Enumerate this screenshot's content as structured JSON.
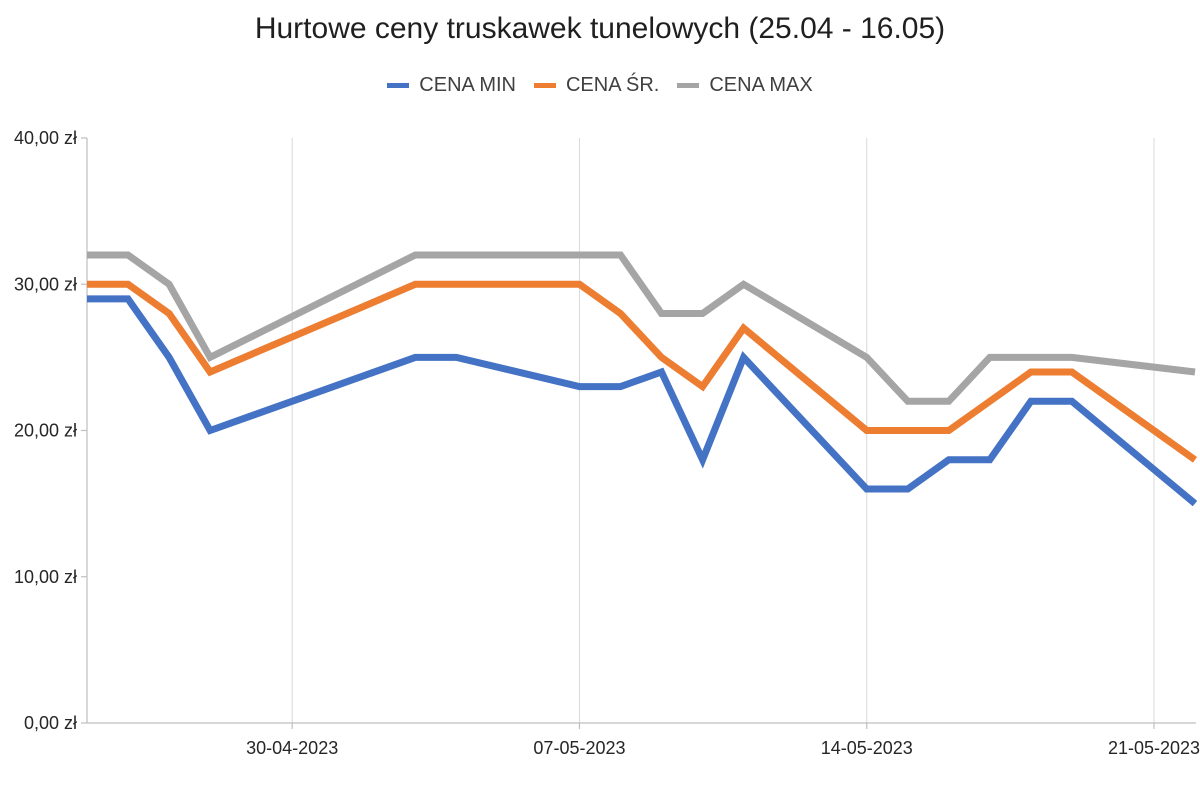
{
  "chart_data": {
    "type": "line",
    "title": "Hurtowe ceny truskawek tunelowych (25.04 - 16.05)",
    "xlabel": "",
    "ylabel": "",
    "ylim": [
      0,
      40
    ],
    "yticks": [
      {
        "value": 0,
        "label": "0,00 zł"
      },
      {
        "value": 10,
        "label": "10,00 zł"
      },
      {
        "value": 20,
        "label": "20,00 zł"
      },
      {
        "value": 30,
        "label": "30,00 zł"
      },
      {
        "value": 40,
        "label": "40,00 zł"
      }
    ],
    "xlim": [
      "2023-04-25",
      "2023-05-21"
    ],
    "xticks": [
      {
        "date": "2023-04-30",
        "label": "30-04-2023"
      },
      {
        "date": "2023-05-07",
        "label": "07-05-2023"
      },
      {
        "date": "2023-05-14",
        "label": "14-05-2023"
      },
      {
        "date": "2023-05-21",
        "label": "21-05-2023"
      }
    ],
    "grid": "vertical",
    "legend_position": "top",
    "x": [
      "2023-04-25",
      "2023-04-26",
      "2023-04-27",
      "2023-04-28",
      "2023-05-03",
      "2023-05-04",
      "2023-05-06",
      "2023-05-07",
      "2023-05-08",
      "2023-05-09",
      "2023-05-10",
      "2023-05-11",
      "2023-05-12",
      "2023-05-13",
      "2023-05-14",
      "2023-05-15",
      "2023-05-16",
      "2023-05-17",
      "2023-05-18",
      "2023-05-19",
      "2023-05-20",
      "2023-05-21",
      "2023-05-22"
    ],
    "series": [
      {
        "name": "CENA MIN",
        "color": "#4472C4",
        "values": [
          29,
          29,
          25,
          20,
          25,
          25,
          null,
          23,
          23,
          24,
          18,
          25,
          null,
          null,
          16,
          16,
          18,
          18,
          22,
          22,
          null,
          null,
          15
        ]
      },
      {
        "name": "CENA ŚR.",
        "color": "#ED7D31",
        "values": [
          30,
          30,
          28,
          24,
          30,
          30,
          null,
          30,
          28,
          25,
          23,
          27,
          null,
          null,
          20,
          20,
          20,
          22,
          24,
          24,
          null,
          null,
          18
        ]
      },
      {
        "name": "CENA MAX",
        "color": "#A5A5A5",
        "values": [
          32,
          32,
          30,
          25,
          32,
          32,
          null,
          32,
          32,
          28,
          28,
          30,
          null,
          null,
          25,
          22,
          22,
          25,
          25,
          25,
          null,
          null,
          24
        ]
      }
    ]
  }
}
